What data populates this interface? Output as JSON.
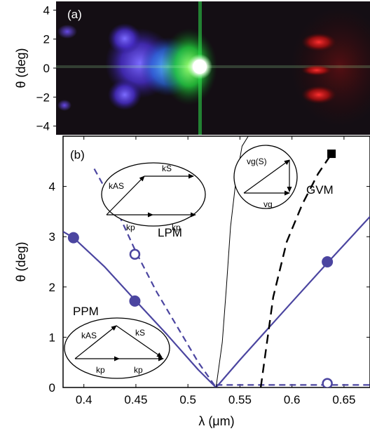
{
  "chart_data": [
    {
      "type": "image",
      "panel_label": "(a)",
      "ylabel": "θ (deg)",
      "ylim": [
        -4.6,
        4.6
      ],
      "yticks": [
        "4",
        "2",
        "0",
        "−2",
        "−4"
      ],
      "ytick_values": [
        4,
        2,
        0,
        -2,
        -4
      ],
      "colors": {
        "violet": "#5a3ee0",
        "blue": "#2a7fe0",
        "green": "#2ee04a",
        "white": "#ffffff",
        "red": "#ff2020",
        "background": "#120d12"
      }
    },
    {
      "type": "line",
      "panel_label": "(b)",
      "xlabel": "λ (μm)",
      "ylabel": "θ (deg)",
      "xlim": [
        0.38,
        0.675
      ],
      "ylim": [
        0,
        5
      ],
      "xticks": [
        "0.4",
        "0.45",
        "0.5",
        "0.55",
        "0.6",
        "0.65"
      ],
      "xtick_values": [
        0.4,
        0.45,
        0.5,
        0.55,
        0.6,
        0.65
      ],
      "yticks": [
        "0",
        "1",
        "2",
        "3",
        "4"
      ],
      "ytick_values": [
        0,
        1,
        2,
        3,
        4
      ],
      "colors": {
        "purple": "#4b45a0",
        "black": "#000000"
      },
      "series": [
        {
          "style": "solid-purple",
          "x": [
            0.38,
            0.39,
            0.42,
            0.45,
            0.48,
            0.51,
            0.527
          ],
          "y": [
            3.1,
            2.98,
            2.4,
            1.72,
            1.05,
            0.35,
            0.0
          ]
        },
        {
          "style": "solid-purple",
          "x": [
            0.527,
            0.55,
            0.6,
            0.635,
            0.675
          ],
          "y": [
            0.0,
            0.55,
            1.7,
            2.5,
            3.4
          ]
        },
        {
          "style": "dashed-purple",
          "x": [
            0.41,
            0.43,
            0.45,
            0.47,
            0.49,
            0.51,
            0.527
          ],
          "y": [
            4.35,
            3.6,
            2.7,
            1.9,
            1.2,
            0.5,
            0.0
          ]
        },
        {
          "style": "dashed-purple",
          "x": [
            0.527,
            0.675
          ],
          "y": [
            0.05,
            0.05
          ]
        },
        {
          "style": "thin-black",
          "x": [
            0.527,
            0.533,
            0.537,
            0.541,
            0.546,
            0.552,
            0.558
          ],
          "y": [
            0.0,
            0.9,
            2.0,
            3.2,
            4.1,
            4.8,
            5.0
          ]
        },
        {
          "style": "dashed-black",
          "x": [
            0.57,
            0.582,
            0.595,
            0.61,
            0.625,
            0.638
          ],
          "y": [
            0.0,
            1.8,
            2.9,
            3.65,
            4.25,
            4.65
          ]
        }
      ],
      "filled_markers": [
        {
          "x": 0.39,
          "y": 2.98
        },
        {
          "x": 0.449,
          "y": 1.72
        },
        {
          "x": 0.634,
          "y": 2.5
        }
      ],
      "open_markers": [
        {
          "x": 0.449,
          "y": 2.65
        },
        {
          "x": 0.634,
          "y": 0.08
        }
      ],
      "square_markers": [
        {
          "x": 0.638,
          "y": 4.65
        }
      ],
      "annotations": [
        "PPM",
        "LPM",
        "GVM"
      ],
      "insets": [
        {
          "name": "LPM",
          "vectors": [
            "kAS",
            "kS",
            "kp",
            "kp"
          ]
        },
        {
          "name": "PPM",
          "vectors": [
            "kAS",
            "kS",
            "kp",
            "kp"
          ]
        },
        {
          "name": "GVM",
          "vectors": [
            "vg(S)",
            "vg"
          ]
        }
      ]
    }
  ]
}
